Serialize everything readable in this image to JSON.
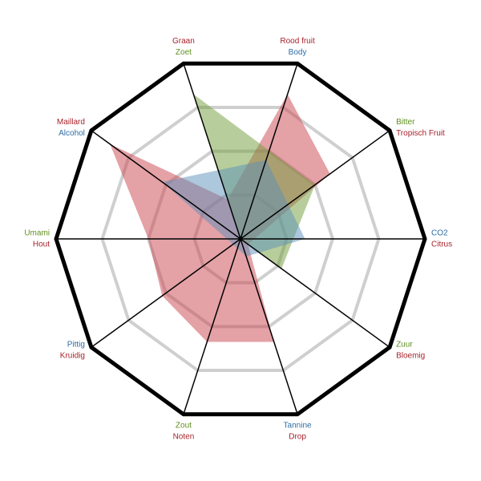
{
  "chart_data": {
    "type": "radar",
    "axes": [
      {
        "labels": [
          {
            "text": "Rood fruit",
            "color": "#a8232b"
          },
          {
            "text": "Body",
            "color": "#2e6da4"
          }
        ]
      },
      {
        "labels": [
          {
            "text": "Bitter",
            "color": "#5f8f1f"
          },
          {
            "text": "Tropisch Fruit",
            "color": "#a8232b"
          }
        ]
      },
      {
        "labels": [
          {
            "text": "CO2",
            "color": "#2e6da4"
          },
          {
            "text": "Citrus",
            "color": "#a8232b"
          }
        ]
      },
      {
        "labels": [
          {
            "text": "Zuur",
            "color": "#5f8f1f"
          },
          {
            "text": "Bloemig",
            "color": "#a8232b"
          }
        ]
      },
      {
        "labels": [
          {
            "text": "Tannine",
            "color": "#2e6da4"
          },
          {
            "text": "Drop",
            "color": "#a8232b"
          }
        ]
      },
      {
        "labels": [
          {
            "text": "Zout",
            "color": "#5f8f1f"
          },
          {
            "text": "Noten",
            "color": "#a8232b"
          }
        ]
      },
      {
        "labels": [
          {
            "text": "Pittig",
            "color": "#2e6da4"
          },
          {
            "text": "Kruidig",
            "color": "#a8232b"
          }
        ]
      },
      {
        "labels": [
          {
            "text": "Umami",
            "color": "#5f8f1f"
          },
          {
            "text": "Hout",
            "color": "#a8232b"
          }
        ]
      },
      {
        "labels": [
          {
            "text": "Maillard",
            "color": "#a8232b"
          },
          {
            "text": "Alcohol",
            "color": "#2e6da4"
          }
        ]
      },
      {
        "labels": [
          {
            "text": "Graan",
            "color": "#a8232b"
          },
          {
            "text": "Zoet",
            "color": "#5f8f1f"
          }
        ]
      }
    ],
    "series": [
      {
        "color": "#c9444e",
        "values": [
          3.3,
          2.4,
          0.3,
          0.2,
          2.35,
          2.35,
          2.1,
          2.0,
          3.5,
          0.9
        ]
      },
      {
        "color": "#6f9e3a",
        "values": [
          null,
          2.0,
          null,
          1.1,
          null,
          0,
          null,
          0,
          null,
          3.3
        ]
      },
      {
        "color": "#5b8fb9",
        "values": [
          1.8,
          null,
          1.4,
          null,
          0.4,
          null,
          0.2,
          null,
          2.1,
          null
        ]
      }
    ],
    "rlim": [
      0,
      4
    ],
    "rticks": [
      1,
      2,
      3
    ]
  }
}
